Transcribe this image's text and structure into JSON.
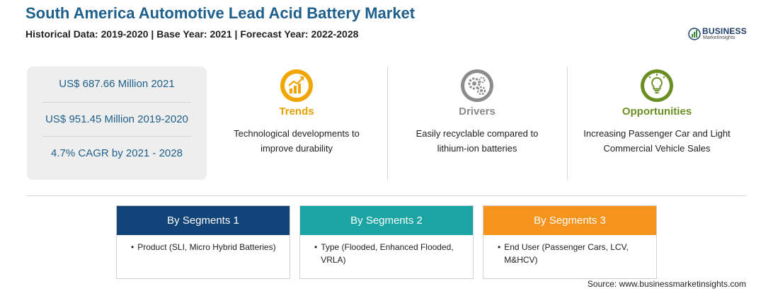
{
  "header": {
    "title": "South America Automotive Lead Acid Battery Market",
    "subtitle": "Historical Data: 2019-2020 | Base Year: 2021 | Forecast Year: 2022-2028"
  },
  "logo": {
    "brand": "BUSINESS",
    "tagline": "MarketInsights"
  },
  "stats": [
    "US$ 687.66 Million 2021",
    "US$ 951.45 Million 2019-2020",
    "4.7% CAGR by 2021 - 2028"
  ],
  "columns": {
    "trends": {
      "heading": "Trends",
      "text": "Technological developments to improve durability",
      "color": "#e8a000",
      "icon": "chart-growth-icon"
    },
    "drivers": {
      "heading": "Drivers",
      "text": "Easily recyclable compared to lithium-ion batteries",
      "color": "#8a8a8a",
      "icon": "gears-icon"
    },
    "opportunities": {
      "heading": "Opportunities",
      "text": "Increasing Passenger Car and Light Commercial Vehicle Sales",
      "color": "#6b8e23",
      "icon": "lightbulb-icon"
    }
  },
  "segments": [
    {
      "heading": "By Segments 1",
      "bullet": "Product (SLI, Micro Hybrid Batteries)",
      "color": "#12447a"
    },
    {
      "heading": "By Segments 2",
      "bullet": "Type (Flooded, Enhanced Flooded, VRLA)",
      "color": "#1aa5a4"
    },
    {
      "heading": "By Segments 3",
      "bullet": "End User (Passenger Cars, LCV, M&HCV)",
      "color": "#f7941d"
    }
  ],
  "source": "Source: www.businessmarketinsights.com"
}
